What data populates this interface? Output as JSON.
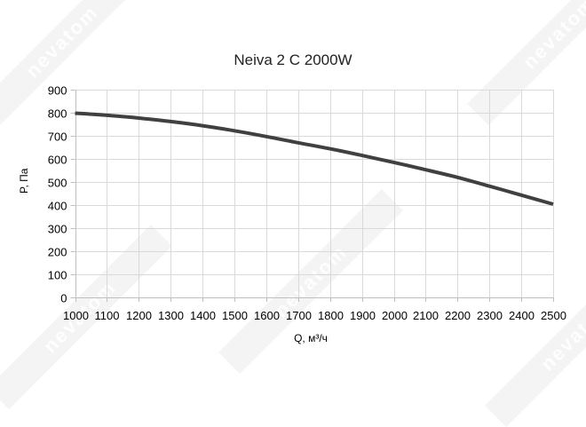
{
  "chart_data": {
    "type": "line",
    "title": "Neiva 2 C 2000W",
    "xlabel": "Q, м³/ч",
    "ylabel": "P, Па",
    "xlim": [
      1000,
      2500
    ],
    "ylim": [
      0,
      900
    ],
    "x_ticks": [
      1000,
      1100,
      1200,
      1300,
      1400,
      1500,
      1600,
      1700,
      1800,
      1900,
      2000,
      2100,
      2200,
      2300,
      2400,
      2500
    ],
    "y_ticks": [
      0,
      100,
      200,
      300,
      400,
      500,
      600,
      700,
      800,
      900
    ],
    "grid": true,
    "legend": null,
    "series": [
      {
        "name": "Neiva 2 C 2000W",
        "color": "#404040",
        "x": [
          1000,
          1100,
          1200,
          1300,
          1400,
          1500,
          1600,
          1700,
          1800,
          1900,
          2000,
          2100,
          2200,
          2300,
          2400,
          2500
        ],
        "values": [
          798,
          789,
          777,
          762,
          744,
          722,
          697,
          670,
          644,
          615,
          585,
          553,
          520,
          482,
          443,
          404
        ]
      }
    ]
  },
  "watermark": {
    "text": "nevatom"
  },
  "colors": {
    "grid": "#d9d9d9",
    "axis": "#bfbfbf",
    "line": "#404040",
    "background": "#ffffff"
  }
}
